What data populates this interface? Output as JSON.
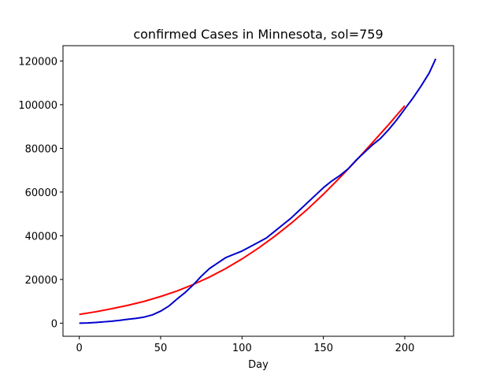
{
  "chart_data": {
    "type": "line",
    "title": "confirmed Cases in Minnesota, sol=759",
    "xlabel": "Day",
    "ylabel": "",
    "xlim": [
      -10,
      230
    ],
    "ylim": [
      -6000,
      127000
    ],
    "x_ticks": [
      0,
      50,
      100,
      150,
      200
    ],
    "y_ticks": [
      0,
      20000,
      40000,
      60000,
      80000,
      100000,
      120000
    ],
    "x_tick_labels": [
      "0",
      "50",
      "100",
      "150",
      "200"
    ],
    "y_tick_labels": [
      "0",
      "20000",
      "40000",
      "60000",
      "80000",
      "100000",
      "120000"
    ],
    "grid": false,
    "legend": "none",
    "series": [
      {
        "color": "#ff0000",
        "x": [
          0,
          10,
          20,
          30,
          40,
          50,
          60,
          70,
          80,
          90,
          100,
          110,
          120,
          130,
          140,
          150,
          160,
          170,
          180,
          190,
          200
        ],
        "y": [
          4000,
          5200,
          6600,
          8200,
          10000,
          12200,
          14700,
          17700,
          21100,
          25000,
          29400,
          34300,
          39700,
          45600,
          52000,
          59000,
          66500,
          74300,
          82500,
          90800,
          99500
        ]
      },
      {
        "color": "#0000cc",
        "x": [
          0,
          5,
          10,
          15,
          20,
          25,
          30,
          35,
          40,
          45,
          50,
          55,
          60,
          65,
          70,
          75,
          80,
          85,
          90,
          95,
          100,
          105,
          110,
          115,
          120,
          125,
          130,
          135,
          140,
          145,
          150,
          155,
          160,
          165,
          170,
          175,
          180,
          185,
          190,
          195,
          200,
          205,
          210,
          215,
          219
        ],
        "y": [
          0,
          100,
          300,
          600,
          900,
          1300,
          1800,
          2200,
          2800,
          3800,
          5500,
          7800,
          11000,
          14000,
          17500,
          21500,
          25000,
          27500,
          30000,
          31500,
          33000,
          35000,
          37000,
          39000,
          42000,
          45000,
          48000,
          51500,
          55000,
          58500,
          62000,
          65000,
          67500,
          70500,
          74500,
          78000,
          81500,
          84500,
          88500,
          93000,
          98000,
          103000,
          108500,
          114500,
          121000
        ]
      }
    ]
  }
}
